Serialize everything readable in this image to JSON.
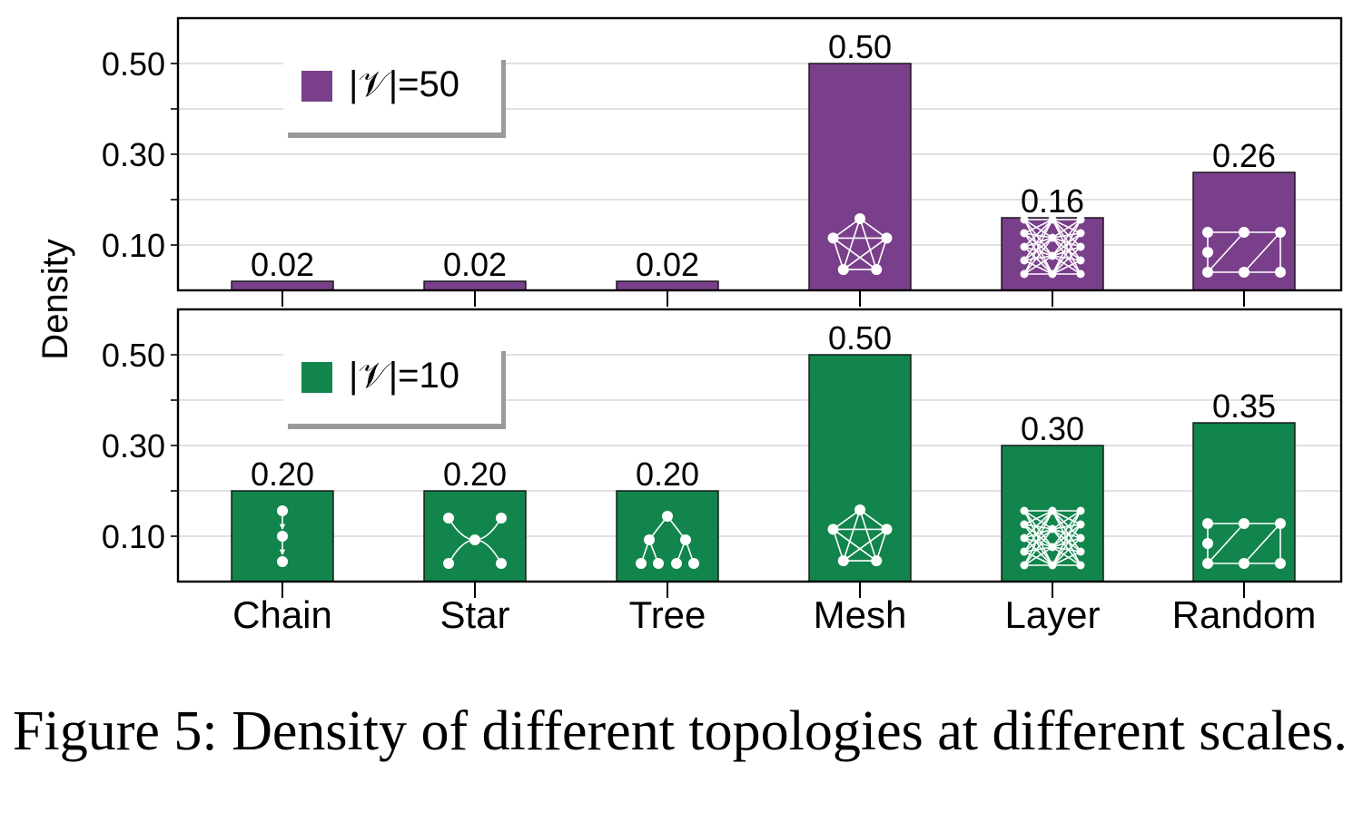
{
  "caption": "Figure 5: Density of different topologies at different scales.",
  "chart_data": [
    {
      "type": "bar",
      "panel": "top",
      "categories": [
        "Chain",
        "Star",
        "Tree",
        "Mesh",
        "Layer",
        "Random"
      ],
      "values": [
        0.02,
        0.02,
        0.02,
        0.5,
        0.16,
        0.26
      ],
      "value_labels": [
        "0.02",
        "0.02",
        "0.02",
        "0.50",
        "0.16",
        "0.26"
      ],
      "legend": "|𝒱|=50",
      "color": "#7a3f8a",
      "ylabel": "Density",
      "ylim": [
        0,
        0.6
      ],
      "yticks": [
        "0.10",
        "0.30",
        "0.50"
      ],
      "ytick_values": [
        0.1,
        0.3,
        0.5
      ],
      "grid": true,
      "legend_position": "top-left"
    },
    {
      "type": "bar",
      "panel": "bottom",
      "categories": [
        "Chain",
        "Star",
        "Tree",
        "Mesh",
        "Layer",
        "Random"
      ],
      "values": [
        0.2,
        0.2,
        0.2,
        0.5,
        0.3,
        0.35
      ],
      "value_labels": [
        "0.20",
        "0.20",
        "0.20",
        "0.50",
        "0.30",
        "0.35"
      ],
      "legend": "|𝒱|=10",
      "color": "#11854c",
      "ylabel": "Density",
      "ylim": [
        0,
        0.6
      ],
      "yticks": [
        "0.10",
        "0.30",
        "0.50"
      ],
      "ytick_values": [
        0.1,
        0.3,
        0.5
      ],
      "grid": true,
      "legend_position": "top-left"
    }
  ]
}
